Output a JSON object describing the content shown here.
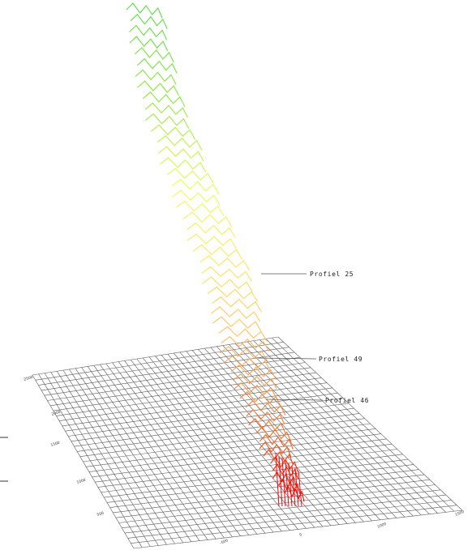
{
  "chart_data": {
    "type": "3d-line",
    "title": "",
    "annotations": [
      {
        "id": "a25",
        "label": "Profiel 25"
      },
      {
        "id": "a49",
        "label": "Profiel 49"
      },
      {
        "id": "a46",
        "label": "Profiel 46"
      }
    ],
    "left_ticks": [
      "2500",
      "2000",
      "1500",
      "1000",
      "500"
    ],
    "bottom_ticks": [
      "-500",
      "0",
      "1000",
      "1500"
    ],
    "grid": true,
    "colorscale": [
      "#ff0000",
      "#ff6a1a",
      "#ffb060",
      "#ffe05a",
      "#e8ff50",
      "#8eea3c",
      "#58dd44"
    ],
    "profiles": {
      "count": 50,
      "highlighted": [
        25,
        46,
        49
      ]
    }
  }
}
